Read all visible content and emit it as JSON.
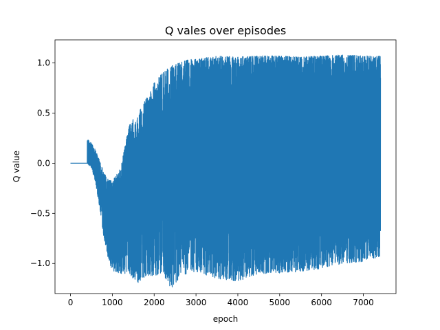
{
  "chart_data": {
    "type": "line",
    "title": "Q vales over episodes",
    "xlabel": "epoch",
    "ylabel": "Q value",
    "xlim": [
      -370,
      7780
    ],
    "ylim": [
      -1.3,
      1.23
    ],
    "xticks": [
      0,
      1000,
      2000,
      3000,
      4000,
      5000,
      6000,
      7000
    ],
    "xtick_labels": [
      "0",
      "1000",
      "2000",
      "3000",
      "4000",
      "5000",
      "6000",
      "7000"
    ],
    "yticks": [
      -1.0,
      -0.5,
      0.0,
      0.5,
      1.0
    ],
    "ytick_labels": [
      "−1.0",
      "−0.5",
      "0.0",
      "0.5",
      "1.0"
    ],
    "grid": false,
    "series": [
      {
        "color": "#1f77b4",
        "x_range": [
          0,
          7410
        ],
        "flat_segment": {
          "x": [
            0,
            400
          ],
          "y": 0.0
        },
        "approx_envelope": {
          "x": [
            400,
            500,
            600,
            700,
            800,
            900,
            1000,
            1200,
            1400,
            1600,
            1700,
            1800,
            2000,
            2200,
            2400,
            2600,
            2800,
            3000,
            3500,
            4000,
            4500,
            5000,
            5500,
            6000,
            6500,
            7000,
            7410
          ],
          "y_upper": [
            0.24,
            0.2,
            0.13,
            0.02,
            -0.1,
            -0.16,
            -0.18,
            -0.05,
            0.38,
            0.5,
            0.55,
            0.64,
            0.8,
            0.9,
            0.97,
            1.0,
            1.03,
            1.04,
            1.07,
            1.06,
            1.07,
            1.07,
            1.06,
            1.07,
            1.08,
            1.07,
            1.07
          ],
          "y_lower": [
            0.0,
            -0.05,
            -0.2,
            -0.45,
            -0.75,
            -0.95,
            -1.07,
            -1.1,
            -1.1,
            -1.2,
            -1.18,
            -1.12,
            -1.12,
            -1.1,
            -1.25,
            -1.15,
            -1.1,
            -1.08,
            -1.15,
            -1.18,
            -1.1,
            -1.1,
            -1.08,
            -1.05,
            -1.0,
            -0.98,
            -0.93
          ]
        }
      }
    ]
  }
}
